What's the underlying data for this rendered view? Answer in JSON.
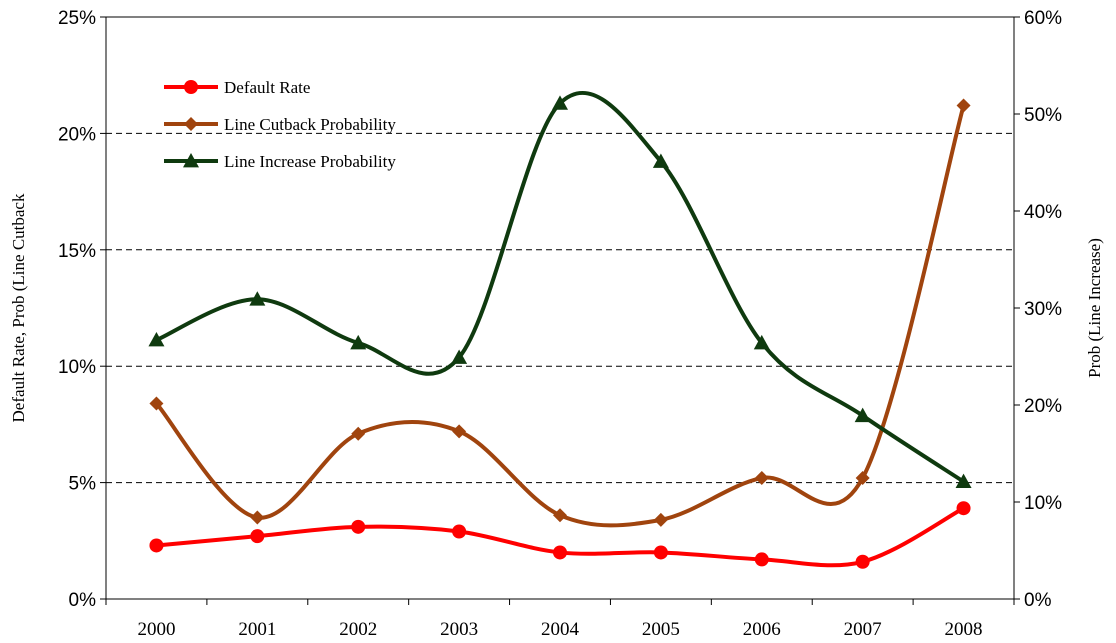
{
  "chart_data": {
    "type": "line",
    "title": "",
    "categories": [
      "2000",
      "2001",
      "2002",
      "2003",
      "2004",
      "2005",
      "2006",
      "2007",
      "2008"
    ],
    "left_axis": {
      "label": "Default Rate, Prob (Line Cutback",
      "ylim": [
        0,
        0.25
      ],
      "ticks": [
        "0%",
        "5%",
        "10%",
        "15%",
        "20%",
        "25%"
      ]
    },
    "right_axis": {
      "label": "Prob (Line Increase)",
      "ylim": [
        0,
        0.6
      ],
      "ticks": [
        "0%",
        "10%",
        "20%",
        "30%",
        "40%",
        "50%",
        "60%"
      ]
    },
    "series": [
      {
        "name": "Default Rate",
        "axis": "left",
        "color": "#ff0000",
        "marker": "circle",
        "values": [
          0.023,
          0.027,
          0.031,
          0.029,
          0.02,
          0.02,
          0.017,
          0.016,
          0.039
        ]
      },
      {
        "name": "Line Cutback Probability",
        "axis": "left",
        "color": "#a0440e",
        "marker": "diamond",
        "values": [
          0.084,
          0.035,
          0.071,
          0.072,
          0.036,
          0.034,
          0.052,
          0.052,
          0.212
        ]
      },
      {
        "name": "Line Increase Probability",
        "axis": "right",
        "color": "#0f3a0f",
        "marker": "triangle",
        "values": [
          0.267,
          0.309,
          0.264,
          0.249,
          0.511,
          0.451,
          0.264,
          0.189,
          0.121
        ]
      }
    ],
    "grid": "horizontal-dashed",
    "legend_position": "top-left"
  }
}
